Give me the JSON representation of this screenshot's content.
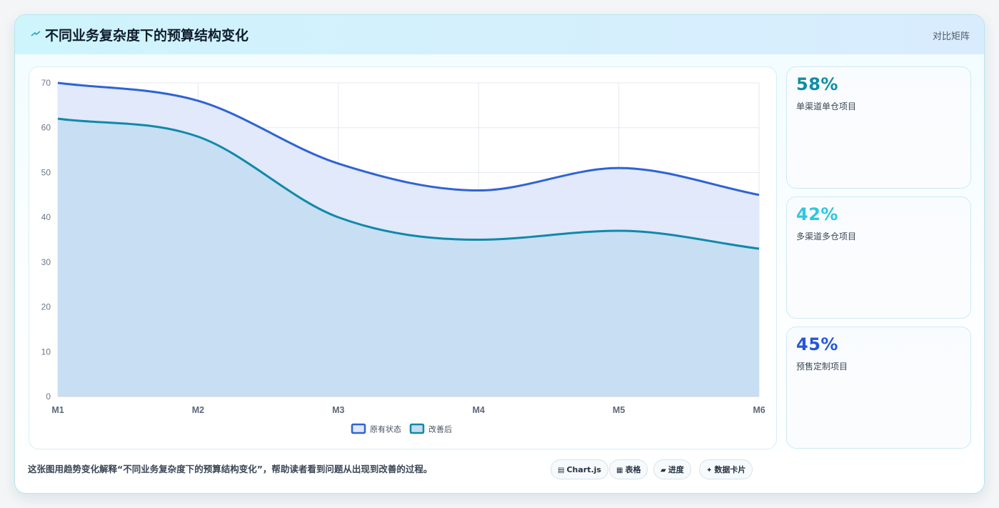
{
  "header": {
    "title": "不同业务复杂度下的预算结构变化",
    "tag": "对比矩阵"
  },
  "chart_data": {
    "type": "area",
    "categories": [
      "M1",
      "M2",
      "M3",
      "M4",
      "M5",
      "M6"
    ],
    "series": [
      {
        "name": "原有状态",
        "values": [
          70,
          66,
          52,
          46,
          51,
          45
        ],
        "color": "#2f63d4",
        "fill": "#dfe8fb"
      },
      {
        "name": "改善后",
        "values": [
          62,
          58,
          40,
          35,
          37,
          33
        ],
        "color": "#1189a8",
        "fill": "#c4dcf2"
      }
    ],
    "ylim": [
      0,
      70
    ],
    "yticks": [
      0,
      10,
      20,
      30,
      40,
      50,
      60,
      70
    ],
    "grid": true,
    "legend": "bottom"
  },
  "stats": [
    {
      "value": "58%",
      "label": "单渠道单仓项目",
      "color": "#0f8ea6"
    },
    {
      "value": "42%",
      "label": "多渠道多仓项目",
      "color": "#2ec7e0"
    },
    {
      "value": "45%",
      "label": "预售定制项目",
      "color": "#2658d6"
    }
  ],
  "footer": {
    "note": "这张图用趋势变化解释“不同业务复杂度下的预算结构变化”，帮助读者看到问题从出现到改善的过程。",
    "pills": [
      {
        "icon": "chart-icon",
        "glyph": "▤",
        "label": "Chart.js"
      },
      {
        "icon": "table-icon",
        "glyph": "▦",
        "label": "表格"
      },
      {
        "icon": "progress-icon",
        "glyph": "▰",
        "label": "进度"
      },
      {
        "icon": "card-icon",
        "glyph": "✦",
        "label": "数据卡片"
      }
    ]
  }
}
